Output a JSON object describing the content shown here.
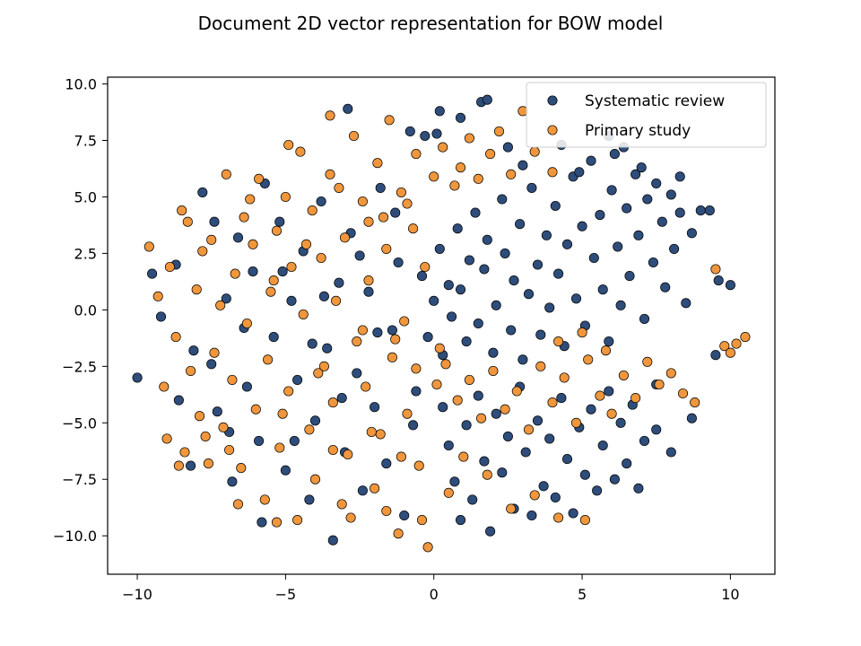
{
  "chart_data": {
    "type": "scatter",
    "title": "Document 2D vector representation for BOW model",
    "xlabel": "",
    "ylabel": "",
    "xlim": [
      -11,
      11.5
    ],
    "ylim": [
      -11.7,
      10.3
    ],
    "xticks": [
      -10,
      -5,
      0,
      5,
      10
    ],
    "xtick_labels": [
      "−10",
      "−5",
      "0",
      "5",
      "10"
    ],
    "yticks": [
      10,
      7.5,
      5,
      2.5,
      0,
      -2.5,
      -5,
      -7.5,
      -10
    ],
    "ytick_labels": [
      "10.0",
      "7.5",
      "5.0",
      "2.5",
      "0.0",
      "−2.5",
      "−5.0",
      "−7.5",
      "−10.0"
    ],
    "grid": false,
    "legend_position": "top-right",
    "series": [
      {
        "name": "Systematic review",
        "color": "#2e4d7b",
        "points": [
          [
            -10.0,
            -3.0
          ],
          [
            -9.5,
            1.6
          ],
          [
            -9.2,
            -0.3
          ],
          [
            -8.6,
            -4.0
          ],
          [
            -8.2,
            -6.9
          ],
          [
            -7.8,
            5.2
          ],
          [
            -7.5,
            -2.4
          ],
          [
            -7.3,
            -4.5
          ],
          [
            -7.0,
            0.5
          ],
          [
            -6.8,
            -7.6
          ],
          [
            -6.6,
            3.2
          ],
          [
            -6.3,
            -3.4
          ],
          [
            -6.1,
            1.7
          ],
          [
            -5.9,
            -5.8
          ],
          [
            -5.7,
            5.6
          ],
          [
            -5.4,
            -1.2
          ],
          [
            -5.2,
            3.9
          ],
          [
            -5.0,
            -7.1
          ],
          [
            -4.8,
            0.4
          ],
          [
            -4.6,
            -3.1
          ],
          [
            -4.4,
            2.6
          ],
          [
            -4.2,
            -8.4
          ],
          [
            -4.0,
            -4.9
          ],
          [
            -3.8,
            4.8
          ],
          [
            -3.6,
            -1.7
          ],
          [
            -3.4,
            -10.2
          ],
          [
            -3.2,
            1.2
          ],
          [
            -3.0,
            -6.3
          ],
          [
            -2.8,
            3.4
          ],
          [
            -2.6,
            -2.8
          ],
          [
            -2.4,
            -8.0
          ],
          [
            -2.2,
            0.8
          ],
          [
            -2.0,
            -4.3
          ],
          [
            -1.8,
            5.4
          ],
          [
            -1.6,
            -6.8
          ],
          [
            -1.4,
            -0.9
          ],
          [
            -1.2,
            2.1
          ],
          [
            -1.0,
            -9.1
          ],
          [
            -0.8,
            7.9
          ],
          [
            -0.6,
            -3.6
          ],
          [
            0.2,
            8.8
          ],
          [
            -2.9,
            8.9
          ],
          [
            1.6,
            9.2
          ],
          [
            1.8,
            9.3
          ],
          [
            -0.3,
            7.7
          ],
          [
            0.1,
            7.8
          ],
          [
            0.9,
            8.5
          ],
          [
            2.5,
            7.2
          ],
          [
            -0.4,
            1.5
          ],
          [
            -0.2,
            -1.2
          ],
          [
            0.0,
            0.4
          ],
          [
            0.2,
            2.7
          ],
          [
            0.3,
            -2.0
          ],
          [
            0.5,
            1.1
          ],
          [
            0.6,
            -0.3
          ],
          [
            0.8,
            3.6
          ],
          [
            0.9,
            0.9
          ],
          [
            1.1,
            -1.4
          ],
          [
            1.2,
            2.2
          ],
          [
            1.4,
            4.3
          ],
          [
            1.5,
            -0.6
          ],
          [
            1.7,
            1.8
          ],
          [
            1.8,
            3.1
          ],
          [
            2.0,
            -1.9
          ],
          [
            2.1,
            0.2
          ],
          [
            2.3,
            4.9
          ],
          [
            2.4,
            2.5
          ],
          [
            2.6,
            -0.9
          ],
          [
            2.7,
            1.3
          ],
          [
            2.9,
            3.8
          ],
          [
            3.0,
            -2.2
          ],
          [
            3.2,
            0.7
          ],
          [
            3.3,
            5.4
          ],
          [
            3.5,
            2.0
          ],
          [
            3.6,
            -1.1
          ],
          [
            3.8,
            3.3
          ],
          [
            3.9,
            0.1
          ],
          [
            4.1,
            4.6
          ],
          [
            4.2,
            1.6
          ],
          [
            4.4,
            -1.6
          ],
          [
            4.5,
            2.9
          ],
          [
            4.7,
            5.9
          ],
          [
            4.8,
            0.5
          ],
          [
            5.0,
            3.7
          ],
          [
            5.1,
            -0.7
          ],
          [
            5.3,
            6.6
          ],
          [
            5.4,
            2.3
          ],
          [
            5.6,
            4.2
          ],
          [
            5.7,
            0.9
          ],
          [
            5.9,
            -1.4
          ],
          [
            6.0,
            5.3
          ],
          [
            6.2,
            2.8
          ],
          [
            6.3,
            0.2
          ],
          [
            6.5,
            4.5
          ],
          [
            6.6,
            1.5
          ],
          [
            6.8,
            6.0
          ],
          [
            6.9,
            3.3
          ],
          [
            7.1,
            -0.4
          ],
          [
            7.2,
            4.9
          ],
          [
            7.4,
            2.1
          ],
          [
            7.5,
            5.6
          ],
          [
            7.7,
            3.9
          ],
          [
            7.8,
            1.0
          ],
          [
            8.0,
            5.1
          ],
          [
            8.1,
            2.7
          ],
          [
            8.3,
            4.3
          ],
          [
            8.5,
            0.3
          ],
          [
            8.7,
            3.4
          ],
          [
            9.0,
            4.4
          ],
          [
            9.3,
            4.4
          ],
          [
            9.6,
            1.3
          ],
          [
            10.0,
            1.1
          ],
          [
            9.5,
            -2.0
          ],
          [
            8.7,
            -4.8
          ],
          [
            7.5,
            -5.3
          ],
          [
            0.3,
            -4.3
          ],
          [
            0.5,
            -6.0
          ],
          [
            0.7,
            -7.6
          ],
          [
            0.9,
            -9.3
          ],
          [
            1.1,
            -5.1
          ],
          [
            1.3,
            -8.4
          ],
          [
            1.5,
            -3.8
          ],
          [
            1.7,
            -6.7
          ],
          [
            1.9,
            -9.8
          ],
          [
            2.1,
            -4.6
          ],
          [
            2.3,
            -7.2
          ],
          [
            2.5,
            -5.6
          ],
          [
            2.7,
            -8.8
          ],
          [
            2.9,
            -3.4
          ],
          [
            3.1,
            -6.3
          ],
          [
            3.3,
            -9.1
          ],
          [
            3.5,
            -4.9
          ],
          [
            3.7,
            -7.8
          ],
          [
            3.9,
            -5.7
          ],
          [
            4.1,
            -8.3
          ],
          [
            4.3,
            -3.9
          ],
          [
            4.5,
            -6.6
          ],
          [
            4.7,
            -9.0
          ],
          [
            4.9,
            -5.2
          ],
          [
            5.1,
            -7.3
          ],
          [
            5.3,
            -4.4
          ],
          [
            5.5,
            -8.0
          ],
          [
            5.7,
            -6.0
          ],
          [
            5.9,
            -3.6
          ],
          [
            6.1,
            -7.5
          ],
          [
            6.3,
            -5.0
          ],
          [
            6.5,
            -6.8
          ],
          [
            6.7,
            -4.2
          ],
          [
            6.9,
            -7.9
          ],
          [
            7.1,
            -5.8
          ],
          [
            7.5,
            -3.3
          ],
          [
            8.0,
            -6.3
          ],
          [
            -8.7,
            2.0
          ],
          [
            -8.1,
            -1.8
          ],
          [
            -7.4,
            3.9
          ],
          [
            -6.9,
            -5.4
          ],
          [
            -6.4,
            -0.8
          ],
          [
            -5.8,
            -9.4
          ],
          [
            -5.1,
            1.7
          ],
          [
            -4.7,
            -5.8
          ],
          [
            -4.1,
            -1.5
          ],
          [
            -3.7,
            0.6
          ],
          [
            -3.1,
            -3.9
          ],
          [
            -2.5,
            2.4
          ],
          [
            -1.9,
            -1.0
          ],
          [
            -1.3,
            4.3
          ],
          [
            -0.7,
            -5.1
          ],
          [
            6.4,
            7.2
          ],
          [
            7.0,
            6.3
          ],
          [
            4.3,
            7.3
          ],
          [
            5.9,
            7.7
          ],
          [
            3.0,
            6.4
          ],
          [
            6.1,
            6.9
          ],
          [
            4.9,
            6.1
          ],
          [
            8.3,
            5.9
          ]
        ]
      },
      {
        "name": "Primary study",
        "color": "#f0963c",
        "points": [
          [
            -9.6,
            2.8
          ],
          [
            -9.3,
            0.6
          ],
          [
            -9.1,
            -3.4
          ],
          [
            -9.0,
            -5.7
          ],
          [
            -8.9,
            1.9
          ],
          [
            -8.7,
            -1.2
          ],
          [
            -8.5,
            4.4
          ],
          [
            -8.4,
            -6.3
          ],
          [
            -8.3,
            3.9
          ],
          [
            -8.2,
            -2.7
          ],
          [
            -8.0,
            0.9
          ],
          [
            -7.9,
            -4.7
          ],
          [
            -7.8,
            2.6
          ],
          [
            -7.6,
            -6.8
          ],
          [
            -7.5,
            3.1
          ],
          [
            -7.4,
            -1.9
          ],
          [
            -7.2,
            0.2
          ],
          [
            -7.1,
            -5.2
          ],
          [
            -7.0,
            6.0
          ],
          [
            -6.8,
            -3.1
          ],
          [
            -6.7,
            1.6
          ],
          [
            -6.5,
            -7.0
          ],
          [
            -6.4,
            4.1
          ],
          [
            -6.3,
            -0.6
          ],
          [
            -6.1,
            2.9
          ],
          [
            -6.0,
            -4.4
          ],
          [
            -5.9,
            5.8
          ],
          [
            -5.7,
            -8.4
          ],
          [
            -5.6,
            -2.2
          ],
          [
            -5.5,
            0.8
          ],
          [
            -5.3,
            3.5
          ],
          [
            -5.2,
            -6.1
          ],
          [
            -5.0,
            5.0
          ],
          [
            -4.9,
            -3.6
          ],
          [
            -4.8,
            1.9
          ],
          [
            -4.6,
            -9.3
          ],
          [
            -4.5,
            7.0
          ],
          [
            -4.4,
            -0.2
          ],
          [
            -4.2,
            -5.3
          ],
          [
            -4.1,
            4.4
          ],
          [
            -4.0,
            -7.5
          ],
          [
            -3.8,
            2.3
          ],
          [
            -3.7,
            -2.5
          ],
          [
            -3.5,
            6.0
          ],
          [
            -3.4,
            -4.1
          ],
          [
            -3.3,
            0.4
          ],
          [
            -3.1,
            -8.6
          ],
          [
            -3.0,
            3.2
          ],
          [
            -2.9,
            -6.4
          ],
          [
            -2.7,
            7.7
          ],
          [
            -2.6,
            -1.4
          ],
          [
            -2.4,
            4.8
          ],
          [
            -2.3,
            -3.4
          ],
          [
            -2.2,
            1.3
          ],
          [
            -2.0,
            -7.9
          ],
          [
            -1.9,
            6.5
          ],
          [
            -1.8,
            -5.5
          ],
          [
            -1.6,
            2.7
          ],
          [
            -1.5,
            8.4
          ],
          [
            -1.4,
            -2.1
          ],
          [
            -1.2,
            -9.9
          ],
          [
            -1.1,
            5.2
          ],
          [
            -1.0,
            -0.5
          ],
          [
            -0.9,
            -4.6
          ],
          [
            -0.7,
            3.6
          ],
          [
            -0.6,
            6.9
          ],
          [
            -0.5,
            -6.9
          ],
          [
            -0.3,
            1.9
          ],
          [
            -0.2,
            -10.5
          ],
          [
            0.0,
            5.9
          ],
          [
            0.1,
            -3.3
          ],
          [
            0.3,
            7.2
          ],
          [
            0.5,
            -8.1
          ],
          [
            0.7,
            5.5
          ],
          [
            0.9,
            6.3
          ],
          [
            1.2,
            7.6
          ],
          [
            1.5,
            5.8
          ],
          [
            1.9,
            6.9
          ],
          [
            2.2,
            7.9
          ],
          [
            2.6,
            6.0
          ],
          [
            3.0,
            8.8
          ],
          [
            3.4,
            7.0
          ],
          [
            4.0,
            6.1
          ],
          [
            -3.5,
            8.6
          ],
          [
            -4.9,
            7.3
          ],
          [
            0.4,
            -2.4
          ],
          [
            0.8,
            -4.0
          ],
          [
            1.2,
            -3.1
          ],
          [
            1.6,
            -4.8
          ],
          [
            2.0,
            -2.7
          ],
          [
            2.4,
            -4.4
          ],
          [
            2.8,
            -3.6
          ],
          [
            3.2,
            -5.3
          ],
          [
            3.6,
            -2.5
          ],
          [
            4.0,
            -4.1
          ],
          [
            4.4,
            -3.0
          ],
          [
            4.8,
            -5.0
          ],
          [
            5.2,
            -2.2
          ],
          [
            5.6,
            -3.8
          ],
          [
            6.0,
            -4.6
          ],
          [
            6.4,
            -2.9
          ],
          [
            6.8,
            -3.9
          ],
          [
            7.2,
            -2.3
          ],
          [
            7.6,
            -3.3
          ],
          [
            8.0,
            -2.8
          ],
          [
            8.4,
            -3.7
          ],
          [
            8.8,
            -4.1
          ],
          [
            4.2,
            -1.4
          ],
          [
            5.0,
            -1.0
          ],
          [
            5.8,
            -1.8
          ],
          [
            1.0,
            -6.5
          ],
          [
            1.8,
            -7.3
          ],
          [
            2.6,
            -8.8
          ],
          [
            3.4,
            -8.2
          ],
          [
            4.2,
            -9.2
          ],
          [
            5.1,
            -9.3
          ],
          [
            -0.4,
            -9.3
          ],
          [
            -1.6,
            -8.9
          ],
          [
            -2.8,
            -9.2
          ],
          [
            -5.3,
            -9.4
          ],
          [
            -6.6,
            -8.6
          ],
          [
            9.8,
            -1.6
          ],
          [
            10.2,
            -1.5
          ],
          [
            10.5,
            -1.2
          ],
          [
            10.0,
            -1.9
          ],
          [
            9.5,
            1.8
          ],
          [
            -2.2,
            3.9
          ],
          [
            -3.2,
            5.4
          ],
          [
            -1.7,
            4.1
          ],
          [
            -0.9,
            4.7
          ],
          [
            -4.3,
            2.9
          ],
          [
            -5.4,
            1.3
          ],
          [
            -6.2,
            4.9
          ],
          [
            -2.4,
            -0.9
          ],
          [
            -1.3,
            -1.3
          ],
          [
            -0.6,
            -2.6
          ],
          [
            0.2,
            -1.7
          ],
          [
            -3.9,
            -2.8
          ],
          [
            -5.1,
            -4.6
          ],
          [
            -6.9,
            -6.2
          ],
          [
            -7.7,
            -5.6
          ],
          [
            -8.6,
            -6.9
          ],
          [
            -3.4,
            -6.2
          ],
          [
            -2.1,
            -5.4
          ],
          [
            -1.1,
            -6.5
          ]
        ]
      }
    ]
  }
}
